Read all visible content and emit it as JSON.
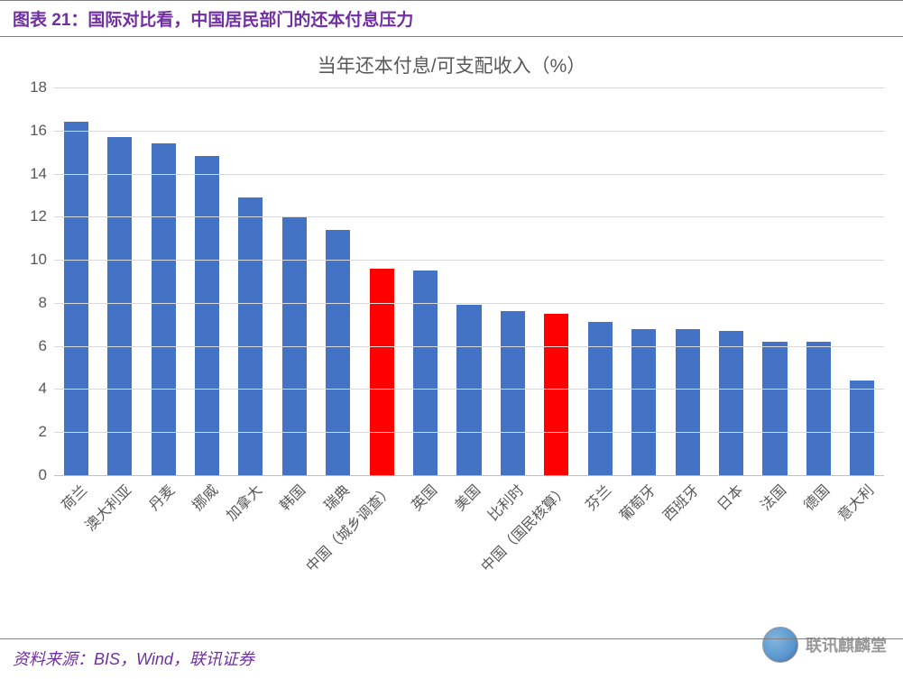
{
  "header": {
    "title": "图表 21：国际对比看，中国居民部门的还本付息压力"
  },
  "chart": {
    "type": "bar",
    "title": "当年还本付息/可支配收入（%）",
    "title_color": "#595959",
    "title_fontsize": 21,
    "categories": [
      "荷兰",
      "澳大利亚",
      "丹麦",
      "挪威",
      "加拿大",
      "韩国",
      "瑞典",
      "中国（城乡调查）",
      "英国",
      "美国",
      "比利时",
      "中国（国民核算）",
      "芬兰",
      "葡萄牙",
      "西班牙",
      "日本",
      "法国",
      "德国",
      "意大利"
    ],
    "values": [
      16.4,
      15.7,
      15.4,
      14.8,
      12.9,
      12.0,
      11.4,
      9.6,
      9.5,
      7.9,
      7.6,
      7.5,
      7.1,
      6.8,
      6.8,
      6.7,
      6.2,
      6.2,
      4.4
    ],
    "bar_colors": [
      "#4472c4",
      "#4472c4",
      "#4472c4",
      "#4472c4",
      "#4472c4",
      "#4472c4",
      "#4472c4",
      "#ff0000",
      "#4472c4",
      "#4472c4",
      "#4472c4",
      "#ff0000",
      "#4472c4",
      "#4472c4",
      "#4472c4",
      "#4472c4",
      "#4472c4",
      "#4472c4",
      "#4472c4"
    ],
    "ylim": [
      0,
      18
    ],
    "ytick_step": 2,
    "yticks": [
      0,
      2,
      4,
      6,
      8,
      10,
      12,
      14,
      16,
      18
    ],
    "grid_color": "#d9d9d9",
    "baseline_color": "#bfbfbf",
    "background_color": "#ffffff",
    "label_color": "#595959",
    "label_fontsize": 17,
    "xlabel_fontsize": 16,
    "xlabel_rotation": -45,
    "bar_width": 0.56
  },
  "footer": {
    "source": "资料来源：BIS，Wind，联讯证券"
  },
  "watermark": {
    "text": "联讯麒麟堂"
  }
}
